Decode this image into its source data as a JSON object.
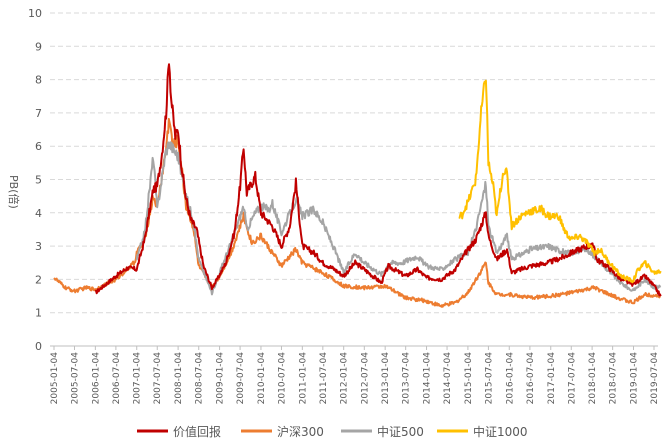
{
  "chart_data": {
    "type": "line",
    "title": "",
    "xlabel": "",
    "ylabel": "PB(倍)",
    "ylim": [
      0,
      10
    ],
    "yticks": [
      0,
      1,
      2,
      3,
      4,
      5,
      6,
      7,
      8,
      9,
      10
    ],
    "grid": true,
    "legend_position": "bottom",
    "xticks": [
      "2005-01-04",
      "2005-07-04",
      "2006-01-04",
      "2006-07-04",
      "2007-01-04",
      "2007-07-04",
      "2008-01-04",
      "2008-07-04",
      "2009-01-04",
      "2009-07-04",
      "2010-01-04",
      "2010-07-04",
      "2011-01-04",
      "2011-07-04",
      "2012-01-04",
      "2012-07-04",
      "2013-01-04",
      "2013-07-04",
      "2014-01-04",
      "2014-07-04",
      "2015-01-04",
      "2015-07-04",
      "2016-01-04",
      "2016-07-04",
      "2017-01-04",
      "2017-07-04",
      "2018-01-04",
      "2018-07-04",
      "2019-01-04",
      "2019-07-04"
    ],
    "series": [
      {
        "name": "价值回报",
        "color": "#c00000",
        "points": [
          [
            "2006-01-04",
            1.6
          ],
          [
            "2006-07-04",
            2.1
          ],
          [
            "2006-10-15",
            2.35
          ],
          [
            "2007-01-04",
            2.3
          ],
          [
            "2007-03-15",
            3.2
          ],
          [
            "2007-05-30",
            4.7
          ],
          [
            "2007-07-04",
            4.8
          ],
          [
            "2007-08-15",
            5.8
          ],
          [
            "2007-09-20",
            7.0
          ],
          [
            "2007-10-16",
            8.7
          ],
          [
            "2007-11-05",
            7.4
          ],
          [
            "2007-12-10",
            6.3
          ],
          [
            "2008-01-04",
            6.5
          ],
          [
            "2008-02-01",
            5.5
          ],
          [
            "2008-03-10",
            4.5
          ],
          [
            "2008-04-25",
            3.8
          ],
          [
            "2008-06-15",
            3.5
          ],
          [
            "2008-08-15",
            2.4
          ],
          [
            "2008-10-28",
            1.75
          ],
          [
            "2008-12-15",
            2.0
          ],
          [
            "2009-03-01",
            2.5
          ],
          [
            "2009-05-15",
            3.4
          ],
          [
            "2009-07-04",
            4.8
          ],
          [
            "2009-08-04",
            6.0
          ],
          [
            "2009-09-01",
            4.6
          ],
          [
            "2009-11-15",
            5.1
          ],
          [
            "2010-01-04",
            4.0
          ],
          [
            "2010-04-15",
            3.6
          ],
          [
            "2010-07-04",
            3.0
          ],
          [
            "2010-09-15",
            3.6
          ],
          [
            "2010-11-08",
            4.9
          ],
          [
            "2011-01-04",
            3.0
          ],
          [
            "2011-04-15",
            2.8
          ],
          [
            "2011-07-04",
            2.5
          ],
          [
            "2011-10-15",
            2.3
          ],
          [
            "2012-01-04",
            2.1
          ],
          [
            "2012-04-15",
            2.5
          ],
          [
            "2012-07-04",
            2.3
          ],
          [
            "2012-12-01",
            1.9
          ],
          [
            "2013-02-01",
            2.4
          ],
          [
            "2013-07-04",
            2.1
          ],
          [
            "2013-10-15",
            2.3
          ],
          [
            "2014-01-04",
            2.05
          ],
          [
            "2014-05-15",
            2.0
          ],
          [
            "2014-09-15",
            2.3
          ],
          [
            "2014-12-15",
            2.8
          ],
          [
            "2015-03-15",
            3.2
          ],
          [
            "2015-06-12",
            4.0
          ],
          [
            "2015-07-04",
            3.3
          ],
          [
            "2015-09-15",
            2.6
          ],
          [
            "2015-12-15",
            2.9
          ],
          [
            "2016-01-25",
            2.2
          ],
          [
            "2016-07-04",
            2.4
          ],
          [
            "2016-12-15",
            2.5
          ],
          [
            "2017-05-15",
            2.7
          ],
          [
            "2017-07-04",
            2.8
          ],
          [
            "2017-11-20",
            3.0
          ],
          [
            "2018-01-25",
            3.0
          ],
          [
            "2018-02-10",
            2.6
          ],
          [
            "2018-05-15",
            2.4
          ],
          [
            "2018-09-15",
            2.0
          ],
          [
            "2018-12-30",
            1.85
          ],
          [
            "2019-04-15",
            2.1
          ],
          [
            "2019-07-04",
            1.8
          ],
          [
            "2019-09-01",
            1.5
          ]
        ]
      },
      {
        "name": "沪深300",
        "color": "#ed7d31",
        "points": [
          [
            "2005-01-04",
            2.05
          ],
          [
            "2005-04-15",
            1.75
          ],
          [
            "2005-07-04",
            1.65
          ],
          [
            "2005-10-15",
            1.75
          ],
          [
            "2006-01-04",
            1.7
          ],
          [
            "2006-07-04",
            2.0
          ],
          [
            "2006-12-15",
            2.5
          ],
          [
            "2007-01-04",
            2.8
          ],
          [
            "2007-03-15",
            3.2
          ],
          [
            "2007-05-30",
            4.5
          ],
          [
            "2007-07-04",
            4.2
          ],
          [
            "2007-09-15",
            5.8
          ],
          [
            "2007-10-20",
            6.9
          ],
          [
            "2007-11-15",
            6.0
          ],
          [
            "2008-01-04",
            6.2
          ],
          [
            "2008-03-15",
            4.2
          ],
          [
            "2008-05-15",
            3.6
          ],
          [
            "2008-07-04",
            2.4
          ],
          [
            "2008-10-28",
            1.75
          ],
          [
            "2009-01-04",
            2.1
          ],
          [
            "2009-04-15",
            2.8
          ],
          [
            "2009-08-04",
            3.9
          ],
          [
            "2009-10-15",
            3.1
          ],
          [
            "2010-01-04",
            3.3
          ],
          [
            "2010-07-04",
            2.4
          ],
          [
            "2010-11-08",
            2.9
          ],
          [
            "2011-01-04",
            2.5
          ],
          [
            "2011-07-04",
            2.2
          ],
          [
            "2012-01-04",
            1.8
          ],
          [
            "2012-07-04",
            1.75
          ],
          [
            "2013-01-04",
            1.8
          ],
          [
            "2013-07-04",
            1.45
          ],
          [
            "2014-01-04",
            1.35
          ],
          [
            "2014-05-15",
            1.2
          ],
          [
            "2014-09-15",
            1.3
          ],
          [
            "2015-01-04",
            1.6
          ],
          [
            "2015-06-12",
            2.5
          ],
          [
            "2015-07-04",
            1.9
          ],
          [
            "2015-09-15",
            1.55
          ],
          [
            "2016-01-04",
            1.55
          ],
          [
            "2016-07-04",
            1.45
          ],
          [
            "2017-01-04",
            1.5
          ],
          [
            "2017-07-04",
            1.6
          ],
          [
            "2018-01-25",
            1.75
          ],
          [
            "2018-07-04",
            1.5
          ],
          [
            "2018-12-30",
            1.3
          ],
          [
            "2019-04-15",
            1.55
          ],
          [
            "2019-09-01",
            1.5
          ]
        ]
      },
      {
        "name": "中证500",
        "color": "#a5a5a5",
        "points": [
          [
            "2007-01-04",
            2.6
          ],
          [
            "2007-03-15",
            3.4
          ],
          [
            "2007-05-30",
            5.7
          ],
          [
            "2007-07-04",
            4.1
          ],
          [
            "2007-09-15",
            5.8
          ],
          [
            "2007-10-16",
            6.1
          ],
          [
            "2008-01-04",
            5.7
          ],
          [
            "2008-03-15",
            4.5
          ],
          [
            "2008-05-15",
            3.8
          ],
          [
            "2008-07-04",
            2.6
          ],
          [
            "2008-10-28",
            1.6
          ],
          [
            "2009-01-04",
            2.2
          ],
          [
            "2009-04-15",
            3.1
          ],
          [
            "2009-08-04",
            4.2
          ],
          [
            "2009-09-01",
            3.5
          ],
          [
            "2009-11-15",
            4.0
          ],
          [
            "2010-01-04",
            4.2
          ],
          [
            "2010-03-15",
            4.1
          ],
          [
            "2010-04-15",
            4.3
          ],
          [
            "2010-07-04",
            3.4
          ],
          [
            "2010-11-08",
            4.4
          ],
          [
            "2011-01-04",
            3.9
          ],
          [
            "2011-04-15",
            4.1
          ],
          [
            "2011-07-04",
            3.7
          ],
          [
            "2011-10-15",
            2.9
          ],
          [
            "2012-01-04",
            2.2
          ],
          [
            "2012-04-15",
            2.8
          ],
          [
            "2012-07-04",
            2.5
          ],
          [
            "2012-12-01",
            2.15
          ],
          [
            "2013-02-15",
            2.5
          ],
          [
            "2013-05-30",
            2.5
          ],
          [
            "2013-10-15",
            2.7
          ],
          [
            "2014-01-04",
            2.4
          ],
          [
            "2014-05-15",
            2.3
          ],
          [
            "2014-09-15",
            2.6
          ],
          [
            "2015-01-04",
            2.8
          ],
          [
            "2015-03-15",
            3.5
          ],
          [
            "2015-06-12",
            4.9
          ],
          [
            "2015-07-04",
            3.6
          ],
          [
            "2015-09-15",
            2.8
          ],
          [
            "2015-12-15",
            3.3
          ],
          [
            "2016-01-25",
            2.6
          ],
          [
            "2016-07-04",
            2.9
          ],
          [
            "2016-12-15",
            3.0
          ],
          [
            "2017-05-15",
            2.8
          ],
          [
            "2017-07-04",
            2.8
          ],
          [
            "2017-11-20",
            2.9
          ],
          [
            "2018-01-25",
            2.7
          ],
          [
            "2018-05-15",
            2.3
          ],
          [
            "2018-09-15",
            1.9
          ],
          [
            "2018-12-30",
            1.65
          ],
          [
            "2019-04-15",
            2.0
          ],
          [
            "2019-07-04",
            1.75
          ],
          [
            "2019-09-01",
            1.8
          ]
        ]
      },
      {
        "name": "中证1000",
        "color": "#ffc000",
        "points": [
          [
            "2014-10-17",
            3.85
          ],
          [
            "2014-11-15",
            3.95
          ],
          [
            "2014-12-15",
            4.2
          ],
          [
            "2015-01-04",
            4.3
          ],
          [
            "2015-03-15",
            5.0
          ],
          [
            "2015-05-01",
            7.0
          ],
          [
            "2015-06-12",
            8.15
          ],
          [
            "2015-07-04",
            5.5
          ],
          [
            "2015-08-15",
            4.8
          ],
          [
            "2015-09-15",
            3.9
          ],
          [
            "2015-11-15",
            5.3
          ],
          [
            "2015-12-15",
            5.15
          ],
          [
            "2016-01-25",
            3.6
          ],
          [
            "2016-04-15",
            3.9
          ],
          [
            "2016-07-04",
            4.05
          ],
          [
            "2016-10-15",
            4.1
          ],
          [
            "2016-12-15",
            3.9
          ],
          [
            "2017-03-15",
            3.9
          ],
          [
            "2017-05-15",
            3.4
          ],
          [
            "2017-07-04",
            3.2
          ],
          [
            "2017-09-15",
            3.3
          ],
          [
            "2017-11-20",
            3.1
          ],
          [
            "2018-01-25",
            2.8
          ],
          [
            "2018-03-15",
            2.9
          ],
          [
            "2018-05-15",
            2.6
          ],
          [
            "2018-09-15",
            2.1
          ],
          [
            "2018-12-30",
            1.95
          ],
          [
            "2019-02-15",
            2.3
          ],
          [
            "2019-04-15",
            2.5
          ],
          [
            "2019-07-04",
            2.2
          ],
          [
            "2019-09-01",
            2.25
          ]
        ]
      }
    ]
  }
}
